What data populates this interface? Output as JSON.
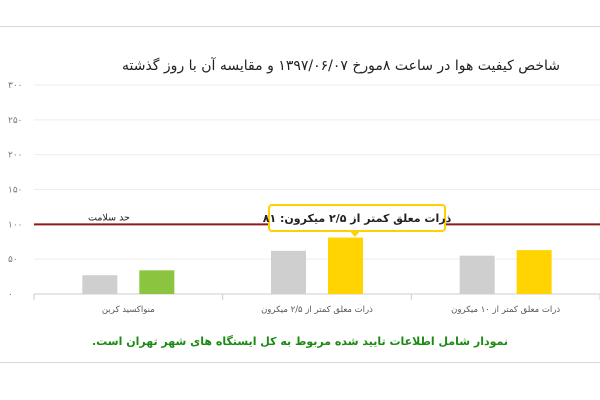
{
  "chart_data": {
    "type": "bar",
    "title": "شاخص کیفیت هوا در ساعت ۸مورخ ۱۳۹۷/۰۶/۰۷ و مقایسه آن با روز گذشته",
    "footnote": "نمودار شامل اطلاعات تایید شده مربوط به کل ایستگاه های شهر تهران است.",
    "categories": [
      "منواکسید کربن",
      "ذرات معلق کمتر از ۲/۵ میکرون",
      "ذرات معلق کمتر از ۱۰ میکرون"
    ],
    "series": [
      {
        "color": "#cfcfcf",
        "values": [
          27,
          62,
          55
        ]
      },
      {
        "color_per_category": [
          "#8bc53f",
          "#ffd400",
          "#ffd400"
        ],
        "values": [
          34,
          81,
          63
        ]
      }
    ],
    "ylim": [
      0,
      300
    ],
    "yticks": [
      {
        "value": 0,
        "label": "۰"
      },
      {
        "value": 50,
        "label": "۵۰"
      },
      {
        "value": 100,
        "label": "۱۰۰"
      },
      {
        "value": 150,
        "label": "۱۵۰"
      },
      {
        "value": 200,
        "label": "۲۰۰"
      },
      {
        "value": 250,
        "label": "۲۵۰"
      },
      {
        "value": 300,
        "label": "۳۰۰"
      }
    ],
    "reference_line": {
      "value": 100,
      "label": "حد سلامت",
      "color": "#8b1a1a"
    },
    "tooltip": {
      "text": "ذرات معلق کمتر از ۲/۵ میکرون: ۸۱",
      "border_color": "#ffd100"
    },
    "grid": true
  }
}
